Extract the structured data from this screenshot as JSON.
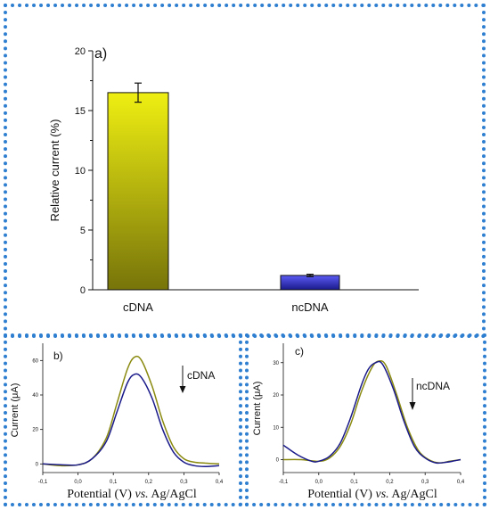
{
  "colors": {
    "frame": "#2f7fd1",
    "bar_cdna_top": "#efef12",
    "bar_cdna_bottom": "#77740a",
    "bar_ncdna_top": "#5a5af5",
    "bar_ncdna_bottom": "#1a1a8a",
    "trace_before": "#8a8a10",
    "trace_after": "#1a1a8a"
  },
  "chart_data": [
    {
      "panel": "a)",
      "type": "bar",
      "categories": [
        "cDNA",
        "ncDNA"
      ],
      "values": [
        16.5,
        1.2
      ],
      "errors": [
        0.8,
        0.1
      ],
      "ylabel": "Relative current (%)",
      "xlabel": "",
      "ylim": [
        0,
        20
      ],
      "yticks": [
        "0",
        "5",
        "10",
        "15",
        "20"
      ],
      "grid": false
    },
    {
      "panel": "b)",
      "type": "line",
      "xlabel_main": "Potential (V) ",
      "xlabel_italic": "vs.",
      "xlabel_tail": " Ag/AgCl",
      "ylabel": "Current (μA)",
      "xlim": [
        -0.1,
        0.4
      ],
      "ylim": [
        -5,
        70
      ],
      "xticks": [
        "-0,1",
        "0,0",
        "0,1",
        "0,2",
        "0,3",
        "0,4"
      ],
      "yticks": [
        "0",
        "20",
        "40",
        "60"
      ],
      "annotation": "cDNA",
      "series": [
        {
          "x": [
            -0.1,
            -0.05,
            0.0,
            0.04,
            0.08,
            0.11,
            0.14,
            0.16,
            0.18,
            0.21,
            0.24,
            0.27,
            0.3,
            0.33,
            0.36,
            0.4
          ],
          "y": [
            0,
            -1,
            -0.5,
            3,
            15,
            35,
            55,
            62,
            60,
            45,
            25,
            10,
            3,
            1,
            0.5,
            0
          ]
        },
        {
          "x": [
            -0.1,
            -0.05,
            0.0,
            0.04,
            0.08,
            0.11,
            0.14,
            0.16,
            0.18,
            0.21,
            0.24,
            0.27,
            0.3,
            0.33,
            0.36,
            0.4
          ],
          "y": [
            0,
            -0.5,
            -0.5,
            3,
            13,
            30,
            47,
            52,
            50,
            38,
            20,
            7,
            1,
            -1,
            -1.5,
            -1
          ]
        }
      ]
    },
    {
      "panel": "c)",
      "type": "line",
      "xlabel_main": "Potential (V) ",
      "xlabel_italic": "vs.",
      "xlabel_tail": " Ag/AgCl",
      "ylabel": "Current (μA)",
      "xlim": [
        -0.1,
        0.4
      ],
      "ylim": [
        -4,
        36
      ],
      "xticks": [
        "-0,1",
        "0,0",
        "0,1",
        "0,2",
        "0,3",
        "0,4"
      ],
      "yticks": [
        "0",
        "10",
        "20",
        "30"
      ],
      "annotation": "ncDNA",
      "series": [
        {
          "x": [
            -0.1,
            -0.05,
            0.0,
            0.03,
            0.06,
            0.09,
            0.12,
            0.15,
            0.17,
            0.19,
            0.22,
            0.25,
            0.28,
            0.31,
            0.34,
            0.37,
            0.4
          ],
          "y": [
            0,
            0,
            -0.5,
            0.5,
            4,
            11,
            21,
            28.5,
            30.5,
            29,
            20,
            10,
            3,
            0,
            -1,
            -0.5,
            0
          ]
        },
        {
          "x": [
            -0.1,
            -0.06,
            -0.02,
            0.0,
            0.03,
            0.06,
            0.09,
            0.12,
            0.14,
            0.16,
            0.18,
            0.21,
            0.24,
            0.27,
            0.3,
            0.33,
            0.36,
            0.4
          ],
          "y": [
            4.5,
            1.5,
            -0.5,
            -0.5,
            1,
            5,
            13,
            23,
            28,
            30,
            29.5,
            22,
            12,
            4,
            0.5,
            -1,
            -0.8,
            0
          ]
        }
      ]
    }
  ]
}
